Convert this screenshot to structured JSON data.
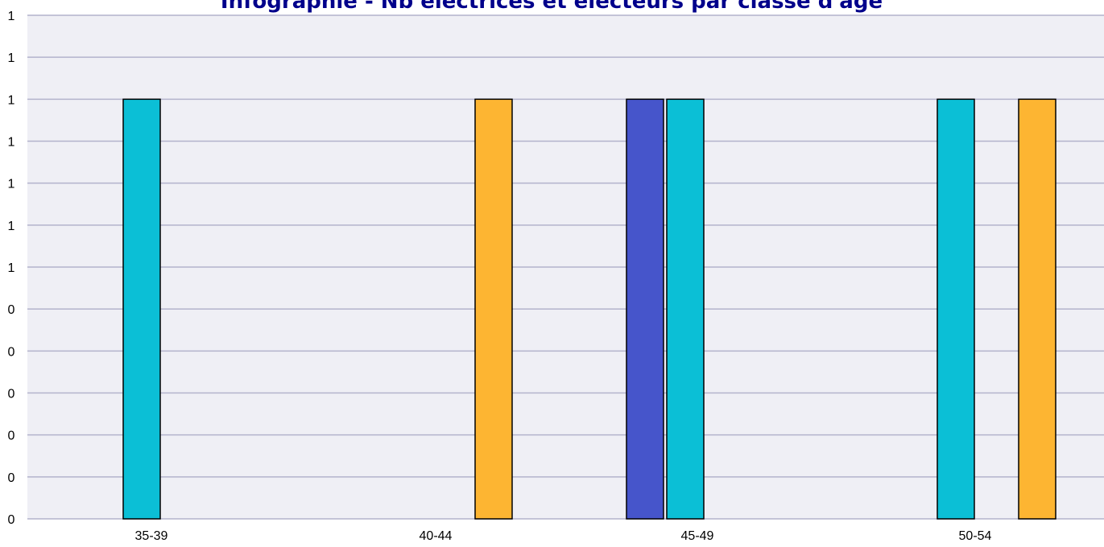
{
  "chart_data": {
    "type": "bar",
    "title": "Infographie - Nb électrices et électeurs par classe d'âge",
    "xlabel": "",
    "ylabel": "",
    "categories": [
      "35-39",
      "40-44",
      "45-49",
      "50-54"
    ],
    "y_tick_labels": [
      "0",
      "0",
      "0",
      "0",
      "0",
      "0",
      "1",
      "1",
      "1",
      "1",
      "1",
      "1",
      "1"
    ],
    "ylim": [
      0,
      1.2
    ],
    "grid": true,
    "legend": "none",
    "series": [
      {
        "color": "#4655cb",
        "values": [
          0,
          0,
          1,
          0
        ]
      },
      {
        "color": "#0bbfd6",
        "values": [
          1,
          0,
          1,
          1
        ]
      },
      {
        "color": "#fdb532",
        "values": [
          0,
          1,
          0,
          1
        ]
      }
    ],
    "background_color": "#efeff5"
  }
}
